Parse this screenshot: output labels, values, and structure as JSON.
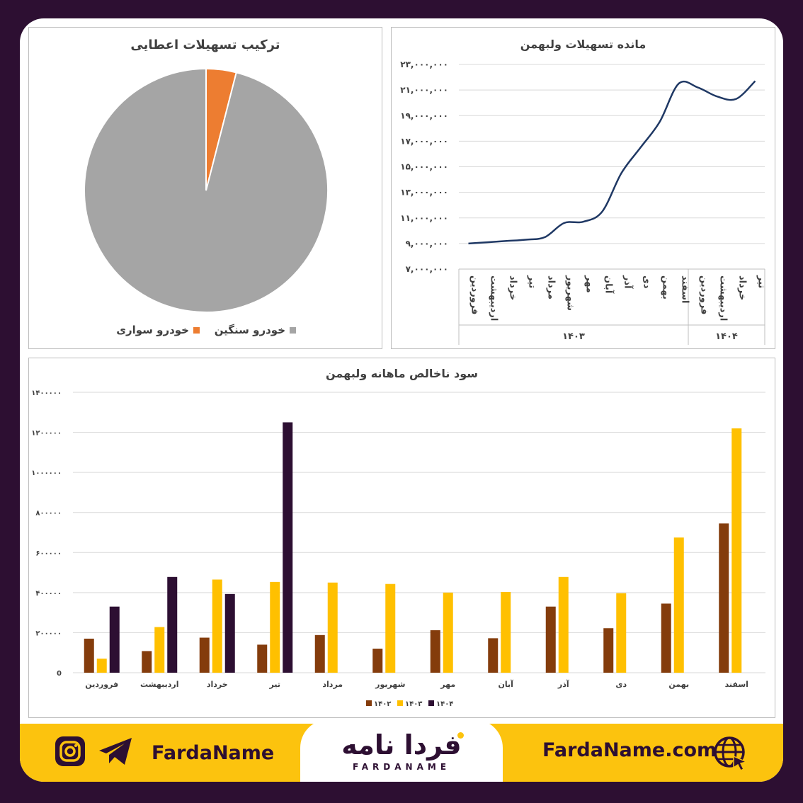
{
  "charts": {
    "pie": {
      "title": "ترکیب تسهیلات اعطایی",
      "legend": [
        "خودرو سواری",
        "خودرو سنگین"
      ]
    },
    "line": {
      "title": "مانده تسهیلات ولبهمن"
    },
    "bar": {
      "title": "سود ناخالص ماهانه ولبهمن"
    }
  },
  "footer": {
    "handle": "FardaName",
    "site": "FardaName.com",
    "logo_fa": "فردا نامه",
    "logo_en": "FARDANAME"
  },
  "icons": [
    "instagram-icon",
    "telegram-icon",
    "globe-icon"
  ],
  "colors": {
    "brand_dark": "#2d0f32",
    "brand_yellow": "#fcc30e",
    "pie_orange": "#ed7d31",
    "pie_gray": "#a5a5a5",
    "line_navy": "#1f3864",
    "bar_1402": "#843c0c",
    "bar_1403": "#ffc000",
    "bar_1404": "#2d0f32"
  },
  "chart_data": [
    {
      "type": "pie",
      "title": "ترکیب تسهیلات اعطایی",
      "labels": [
        "خودرو سواری",
        "خودرو سنگین"
      ],
      "values": [
        4,
        96
      ],
      "colors": [
        "#ed7d31",
        "#a5a5a5"
      ],
      "legend": "bottom"
    },
    {
      "type": "line",
      "title": "مانده تسهیلات ولبهمن",
      "categories": [
        "فروردین",
        "اردیبهشت",
        "خرداد",
        "تیر",
        "مرداد",
        "شهریور",
        "مهر",
        "آبان",
        "آذر",
        "دی",
        "بهمن",
        "اسفند",
        "فروردین",
        "اردیبهشت",
        "خرداد",
        "تیر"
      ],
      "groups": [
        {
          "label": "۱۴۰۳",
          "count": 12
        },
        {
          "label": "۱۴۰۴",
          "count": 4
        }
      ],
      "values": [
        9000000,
        9100000,
        9200000,
        9300000,
        9500000,
        10600000,
        10700000,
        11500000,
        14500000,
        16500000,
        18500000,
        21500000,
        21200000,
        20500000,
        20300000,
        21700000
      ],
      "yticks": [
        "۷,۰۰۰,۰۰۰",
        "۹,۰۰۰,۰۰۰",
        "۱۱,۰۰۰,۰۰۰",
        "۱۳,۰۰۰,۰۰۰",
        "۱۵,۰۰۰,۰۰۰",
        "۱۷,۰۰۰,۰۰۰",
        "۱۹,۰۰۰,۰۰۰",
        "۲۱,۰۰۰,۰۰۰",
        "۲۳,۰۰۰,۰۰۰"
      ],
      "ylim": [
        7000000,
        23000000
      ],
      "grid": true
    },
    {
      "type": "bar",
      "title": "سود ناخالص ماهانه ولبهمن",
      "categories": [
        "فروردین",
        "اردیبهشت",
        "خرداد",
        "تیر",
        "مرداد",
        "شهریور",
        "مهر",
        "آبان",
        "آذر",
        "دی",
        "بهمن",
        "اسفند"
      ],
      "series": [
        {
          "name": "۱۴۰۲",
          "values": [
            170000,
            108000,
            175000,
            140000,
            188000,
            120000,
            212000,
            172000,
            330000,
            222000,
            345000,
            745000
          ]
        },
        {
          "name": "۱۴۰۳",
          "values": [
            70000,
            228000,
            465000,
            453000,
            450000,
            443000,
            400000,
            403000,
            478000,
            397000,
            675000,
            1220000
          ]
        },
        {
          "name": "۱۴۰۴",
          "values": [
            330000,
            478000,
            393000,
            1250000,
            null,
            null,
            null,
            null,
            null,
            null,
            null,
            null
          ]
        }
      ],
      "yticks": [
        "0",
        "۲۰۰۰۰۰",
        "۴۰۰۰۰۰",
        "۶۰۰۰۰۰",
        "۸۰۰۰۰۰",
        "۱۰۰۰۰۰۰",
        "۱۲۰۰۰۰۰",
        "۱۴۰۰۰۰۰"
      ],
      "ylim": [
        0,
        1400000
      ],
      "legend": "bottom",
      "grid": true
    }
  ]
}
